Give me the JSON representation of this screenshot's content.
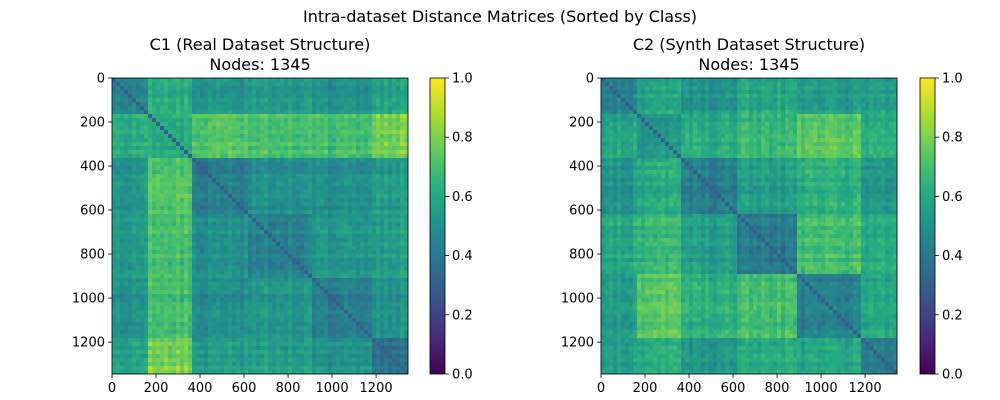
{
  "figure": {
    "suptitle": "Intra-dataset Distance Matrices (Sorted by Class)"
  },
  "chart_data": [
    {
      "type": "heatmap",
      "title": "C1 (Real Dataset Structure)",
      "subtitle": "Nodes: 1345",
      "matrix_size": 1345,
      "x_ticks": [
        0,
        200,
        400,
        600,
        800,
        1000,
        1200
      ],
      "y_ticks": [
        0,
        200,
        400,
        600,
        800,
        1000,
        1200
      ],
      "x_tick_labels": [
        "0",
        "200",
        "400",
        "600",
        "800",
        "1000",
        "1200"
      ],
      "y_tick_labels": [
        "0",
        "200",
        "400",
        "600",
        "800",
        "1000",
        "1200"
      ],
      "colormap": "viridis",
      "vmin": 0.0,
      "vmax": 1.0,
      "colorbar_ticks": [
        "0.0",
        "0.2",
        "0.4",
        "0.6",
        "0.8",
        "1.0"
      ],
      "class_boundaries": [
        0,
        170,
        370,
        620,
        900,
        1180,
        1345
      ],
      "block_mean_distance": [
        [
          0.45,
          0.62,
          0.52,
          0.55,
          0.5,
          0.58
        ],
        [
          0.62,
          0.6,
          0.72,
          0.7,
          0.68,
          0.78
        ],
        [
          0.52,
          0.72,
          0.42,
          0.5,
          0.48,
          0.55
        ],
        [
          0.55,
          0.7,
          0.5,
          0.45,
          0.52,
          0.56
        ],
        [
          0.5,
          0.68,
          0.48,
          0.52,
          0.4,
          0.5
        ],
        [
          0.58,
          0.78,
          0.55,
          0.56,
          0.5,
          0.38
        ]
      ],
      "diagonal_distance": 0.3
    },
    {
      "type": "heatmap",
      "title": "C2 (Synth Dataset Structure)",
      "subtitle": "Nodes: 1345",
      "matrix_size": 1345,
      "x_ticks": [
        0,
        200,
        400,
        600,
        800,
        1000,
        1200
      ],
      "y_ticks": [
        0,
        200,
        400,
        600,
        800,
        1000,
        1200
      ],
      "x_tick_labels": [
        "0",
        "200",
        "400",
        "600",
        "800",
        "1000",
        "1200"
      ],
      "y_tick_labels": [
        "0",
        "200",
        "400",
        "600",
        "800",
        "1000",
        "1200"
      ],
      "colormap": "viridis",
      "vmin": 0.0,
      "vmax": 1.0,
      "colorbar_ticks": [
        "0.0",
        "0.2",
        "0.4",
        "0.6",
        "0.8",
        "1.0"
      ],
      "class_boundaries": [
        0,
        170,
        370,
        620,
        890,
        1180,
        1345
      ],
      "block_mean_distance": [
        [
          0.45,
          0.58,
          0.52,
          0.6,
          0.55,
          0.56
        ],
        [
          0.58,
          0.5,
          0.6,
          0.65,
          0.72,
          0.6
        ],
        [
          0.52,
          0.6,
          0.42,
          0.55,
          0.62,
          0.52
        ],
        [
          0.6,
          0.65,
          0.55,
          0.4,
          0.68,
          0.6
        ],
        [
          0.55,
          0.72,
          0.62,
          0.68,
          0.42,
          0.58
        ],
        [
          0.56,
          0.6,
          0.52,
          0.6,
          0.58,
          0.4
        ]
      ],
      "diagonal_distance": 0.3
    }
  ]
}
